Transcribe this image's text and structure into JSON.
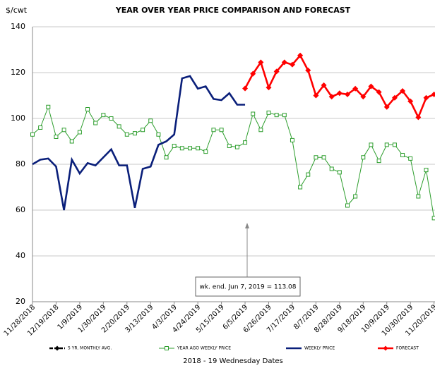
{
  "chart_data": {
    "type": "line",
    "title": "YEAR OVER YEAR PRICE COMPARISON AND FORECAST",
    "y_label": "$/cwt",
    "x_label": "2018 - 19 Wednesday Dates",
    "annotation": "wk. end. Jun 7, 2019 = 113.08",
    "categories": [
      "11/28/2018",
      null,
      null,
      "12/19/2018",
      null,
      null,
      "1/9/2019",
      null,
      null,
      "1/30/2019",
      null,
      null,
      "2/20/2019",
      null,
      null,
      "3/13/2019",
      null,
      null,
      "4/3/2019",
      null,
      null,
      "4/24/2019",
      null,
      null,
      "5/15/2019",
      null,
      null,
      "6/5/2019",
      null,
      null,
      "6/26/2019",
      null,
      null,
      "7/17/2019",
      null,
      null,
      "8/7/2019",
      null,
      null,
      "8/28/2019",
      null,
      null,
      "9/18/2019",
      null,
      null,
      "10/9/2019",
      null,
      null,
      "10/30/2019",
      null,
      null,
      "11/20/2019"
    ],
    "ylim": [
      20,
      140
    ],
    "yticks": [
      20,
      40,
      60,
      80,
      100,
      120,
      140
    ],
    "grid": true,
    "legend": "bottom",
    "series": [
      {
        "name": "5 YR. MONTHLY AVG.",
        "color": "#000000",
        "dash": true,
        "marker": "diamond",
        "values": [
          null,
          null,
          null,
          null,
          null,
          null,
          null,
          null,
          null,
          null,
          null,
          null,
          null,
          null,
          null,
          null,
          null,
          null,
          null,
          null,
          null,
          null,
          null,
          null,
          null,
          null,
          null,
          null,
          null,
          null,
          null,
          null,
          null,
          null,
          null,
          null,
          null,
          null,
          null,
          null,
          null,
          null,
          null,
          null,
          null,
          null,
          null,
          null,
          null,
          null,
          null,
          null
        ]
      },
      {
        "name": "YEAR AGO WEEKLY PRICE",
        "color": "#2e9e2e",
        "dash": false,
        "marker": "square",
        "values": [
          93,
          96,
          105,
          92,
          95,
          90,
          94,
          104,
          98,
          101.5,
          100,
          96.5,
          93,
          93.5,
          95,
          99,
          93,
          83,
          88,
          87,
          87,
          87,
          85.5,
          95,
          95,
          88,
          87.5,
          89.5,
          102,
          95,
          102.5,
          101.5,
          101.5,
          90.5,
          70,
          75.5,
          83,
          83,
          78,
          76.5,
          62,
          66,
          83,
          88.5,
          81.5,
          88.5,
          88.5,
          84,
          82.5,
          66,
          77.5,
          56.5
        ]
      },
      {
        "name": "WEEKLY PRICE",
        "color": "#0a1f7a",
        "dash": false,
        "marker": "none",
        "values": [
          80,
          82,
          82.5,
          79,
          60,
          82,
          76,
          80.5,
          79.5,
          83,
          86.5,
          79.5,
          79.5,
          61,
          78,
          79,
          88.5,
          90,
          93,
          117.5,
          118.5,
          113,
          114,
          108.5,
          108,
          111,
          106,
          106,
          null,
          null,
          null,
          null,
          null,
          null,
          null,
          null,
          null,
          null,
          null,
          null,
          null,
          null,
          null,
          null,
          null,
          null,
          null,
          null,
          null,
          null,
          null,
          null
        ]
      },
      {
        "name": "FORECAST",
        "color": "#ff0000",
        "dash": false,
        "marker": "diamond",
        "values": [
          null,
          null,
          null,
          null,
          null,
          null,
          null,
          null,
          null,
          null,
          null,
          null,
          null,
          null,
          null,
          null,
          null,
          null,
          null,
          null,
          null,
          null,
          null,
          null,
          null,
          null,
          null,
          113.08,
          119.5,
          124.5,
          113.5,
          120.5,
          124.5,
          123.5,
          127.5,
          121,
          110,
          114.5,
          109.5,
          111,
          110.5,
          113,
          109.5,
          114,
          111.5,
          105,
          109,
          112,
          107.5,
          100.5,
          109,
          110.5
        ]
      }
    ]
  }
}
